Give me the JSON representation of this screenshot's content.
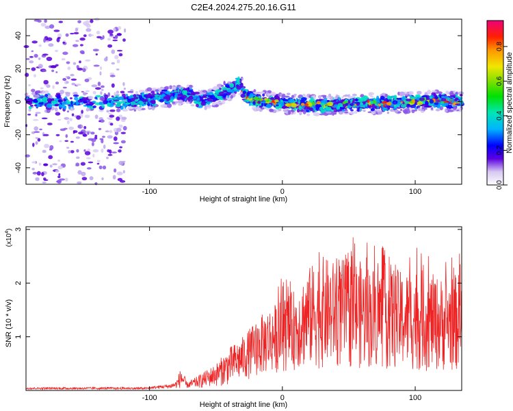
{
  "title": "C2E4.2024.275.20.16.G11",
  "chart_data": [
    {
      "type": "heatmap",
      "description_role": "spectrogram",
      "xlabel": "Height of straight line (km)",
      "ylabel": "Frequency (Hz)",
      "xlim": [
        -193,
        135
      ],
      "ylim": [
        -50,
        50
      ],
      "xticks": [
        -100,
        0,
        100
      ],
      "xtick_labels": [
        "-100",
        "0",
        "100"
      ],
      "yticks": [
        -40,
        -20,
        0,
        20,
        40
      ],
      "ytick_labels": [
        "-40",
        "-20",
        "0",
        "20",
        "40"
      ],
      "colorbar": {
        "label": "Normalized spectral amplitude",
        "range": [
          0,
          0.95
        ],
        "ticks": [
          0.0,
          0.2,
          0.4,
          0.6,
          0.8
        ],
        "tick_labels": [
          "0.0",
          "0.2",
          "0.4",
          "0.6",
          "0.8"
        ]
      },
      "ridge": {
        "x": [
          -193,
          -150,
          -120,
          -110,
          -95,
          -80,
          -70,
          -62,
          -55,
          -45,
          -38,
          -32,
          -28,
          -22,
          -10,
          0,
          20,
          40,
          60,
          80,
          100,
          115,
          125,
          135
        ],
        "y": [
          0,
          0,
          0,
          1,
          2,
          4,
          5,
          0,
          2,
          5,
          8,
          12,
          3,
          1,
          0,
          -1,
          -2,
          -2,
          -1,
          -1,
          0,
          1,
          0,
          0
        ]
      }
    },
    {
      "type": "line",
      "xlabel": "Height of straight line (km)",
      "ylabel": "SNR (10 * v/v)",
      "scale_label": "(x10",
      "scale_exponent": "4",
      "scale_suffix": ")",
      "xlim": [
        -193,
        135
      ],
      "ylim": [
        0,
        3.05
      ],
      "xticks": [
        -100,
        0,
        100
      ],
      "xtick_labels": [
        "-100",
        "0",
        "100"
      ],
      "yticks": [
        1,
        2,
        3
      ],
      "ytick_labels": [
        "1",
        "2",
        "3"
      ],
      "series_color": "#ee2222",
      "envelope": {
        "x": [
          -193,
          -100,
          -85,
          -80,
          -76,
          -72,
          -65,
          -50,
          -40,
          -30,
          -20,
          -10,
          0,
          10,
          20,
          30,
          40,
          50,
          60,
          70,
          80,
          90,
          100,
          110,
          120,
          135
        ],
        "y": [
          0.05,
          0.07,
          0.12,
          0.18,
          0.45,
          0.15,
          0.25,
          0.5,
          0.8,
          1.0,
          1.3,
          1.55,
          1.7,
          1.9,
          2.3,
          2.5,
          2.4,
          2.5,
          2.4,
          2.3,
          2.4,
          2.2,
          2.3,
          2.2,
          2.1,
          2.2
        ]
      },
      "floor": {
        "x": [
          -193,
          -100,
          -60,
          -40,
          -20,
          0,
          20,
          60,
          100,
          135
        ],
        "y": [
          0.02,
          0.03,
          0.05,
          0.1,
          0.25,
          0.35,
          0.4,
          0.4,
          0.35,
          0.35
        ]
      }
    }
  ]
}
